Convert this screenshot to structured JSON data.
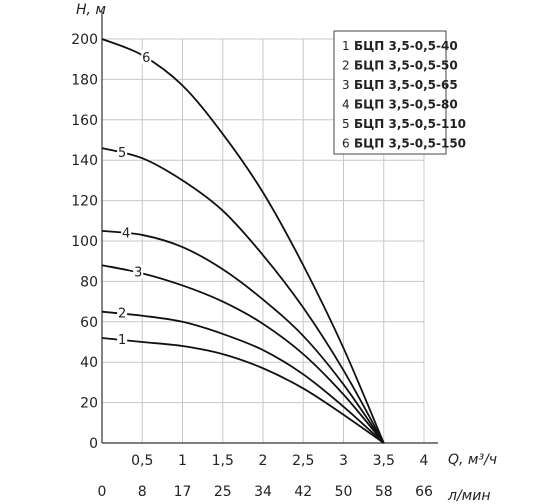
{
  "chart_data": {
    "type": "line",
    "title": "",
    "ylabel": "H, м",
    "xlabel": "Q, м³/ч",
    "x2label": "л/мин",
    "xlim": [
      0,
      4
    ],
    "ylim": [
      0,
      200
    ],
    "grid": true,
    "legend_position": "top-right",
    "x_ticks": [
      "0,5",
      "1",
      "1,5",
      "2",
      "2,5",
      "3",
      "3,5",
      "4"
    ],
    "x2_ticks": [
      "0",
      "8",
      "17",
      "25",
      "34",
      "42",
      "50",
      "58",
      "66"
    ],
    "y_ticks": [
      "0",
      "20",
      "40",
      "60",
      "80",
      "100",
      "120",
      "140",
      "160",
      "180",
      "200"
    ],
    "series": [
      {
        "num": "1",
        "name": "БЦП 3,5-0,5-40",
        "x": [
          0,
          0.5,
          1,
          1.5,
          2,
          2.5,
          3,
          3.5
        ],
        "y": [
          52,
          50,
          48,
          44,
          37,
          27,
          14,
          0
        ]
      },
      {
        "num": "2",
        "name": "БЦП 3,5-0,5-50",
        "x": [
          0,
          0.5,
          1,
          1.5,
          2,
          2.5,
          3,
          3.5
        ],
        "y": [
          65,
          63,
          60,
          54,
          46,
          34,
          18,
          0
        ]
      },
      {
        "num": "3",
        "name": "БЦП 3,5-0,5-65",
        "x": [
          0,
          0.5,
          1,
          1.5,
          2,
          2.5,
          3,
          3.5
        ],
        "y": [
          88,
          84,
          78,
          70,
          59,
          44,
          24,
          0
        ]
      },
      {
        "num": "4",
        "name": "БЦП 3,5-0,5-80",
        "x": [
          0,
          0.5,
          1,
          1.5,
          2,
          2.5,
          3,
          3.5
        ],
        "y": [
          105,
          103,
          97,
          86,
          71,
          53,
          29,
          0
        ]
      },
      {
        "num": "5",
        "name": "БЦП 3,5-0,5-110",
        "x": [
          0,
          0.5,
          1,
          1.5,
          2,
          2.5,
          3,
          3.5
        ],
        "y": [
          146,
          141,
          130,
          115,
          93,
          67,
          36,
          0
        ]
      },
      {
        "num": "6",
        "name": "БЦП 3,5-0,5-150",
        "x": [
          0,
          0.5,
          1,
          1.5,
          2,
          2.5,
          3,
          3.5
        ],
        "y": [
          200,
          192,
          177,
          153,
          124,
          88,
          47,
          0
        ]
      }
    ],
    "label_at_x": [
      0.25,
      0.25,
      0.45,
      0.3,
      0.25,
      0.55
    ]
  }
}
